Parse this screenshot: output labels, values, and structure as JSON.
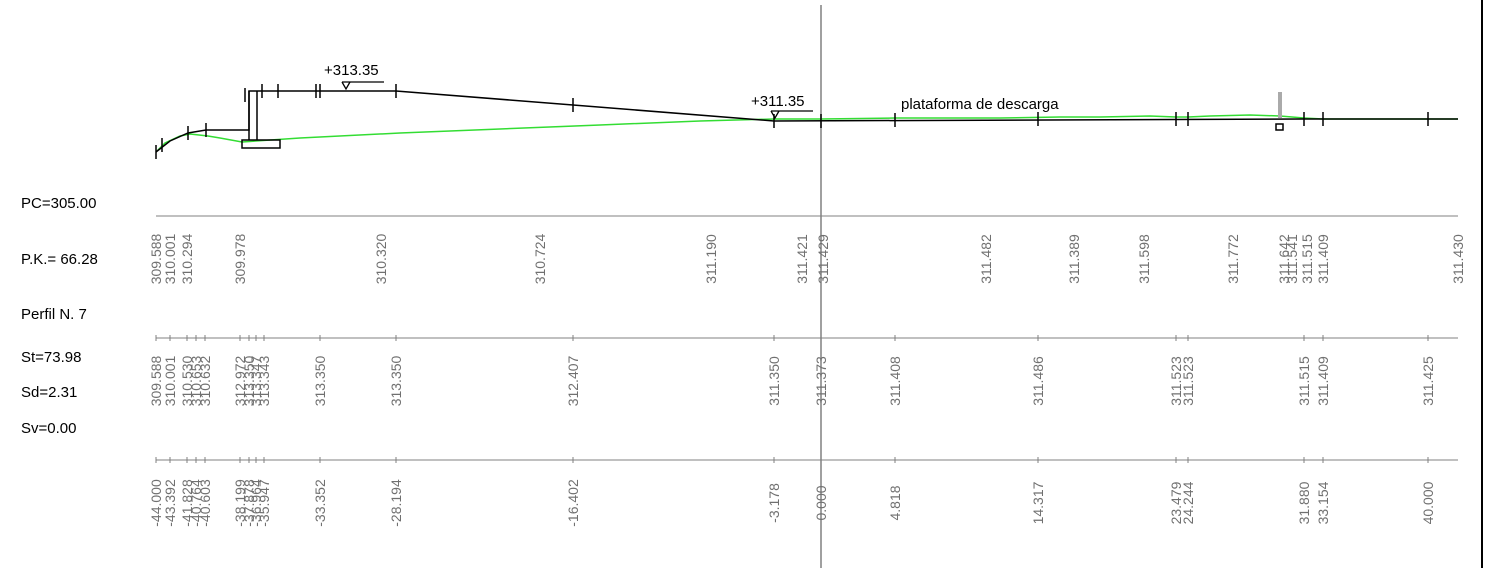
{
  "header_labels": {
    "pc": "PC=305.00",
    "pk": "P.K.= 66.28",
    "perfil": "Perfil N. 7",
    "st": "St=73.98",
    "sd": "Sd=2.31",
    "sv": "Sv=0.00"
  },
  "annotations": {
    "left_level": "+313.35",
    "center_level": "+311.35",
    "platform": "plataforma de descarga"
  },
  "colors": {
    "terrain": "#33dd33",
    "project": "#000000",
    "numbers": "#707070",
    "axis": "#808080"
  },
  "terrain_elevations": [
    "309.588",
    "310.001",
    "310.294",
    "309.978",
    "310.320",
    "310.724",
    "311.190",
    "311.421",
    "311.429",
    "311.482",
    "311.389",
    "311.598",
    "311.772",
    "311.642",
    "311.541",
    "311.515",
    "311.409",
    "311.430"
  ],
  "project_elevations": [
    "309.588",
    "310.001",
    "310.530",
    "310.653",
    "310.632",
    "312.972",
    "313.350",
    "313.347",
    "313.343",
    "313.350",
    "313.350",
    "312.407",
    "311.350",
    "311.373",
    "311.408",
    "311.486",
    "311.523",
    "311.523",
    "311.515",
    "311.409",
    "311.425"
  ],
  "offsets": [
    "-44.000",
    "-43.392",
    "-41.828",
    "-40.764",
    "-40.603",
    "-38.199",
    "-37.878",
    "-36.964",
    "-35.947",
    "-33.352",
    "-28.194",
    "-16.402",
    "-3.178",
    "0.000",
    "4.818",
    "14.317",
    "23.479",
    "24.244",
    "31.880",
    "33.154",
    "40.000"
  ]
}
